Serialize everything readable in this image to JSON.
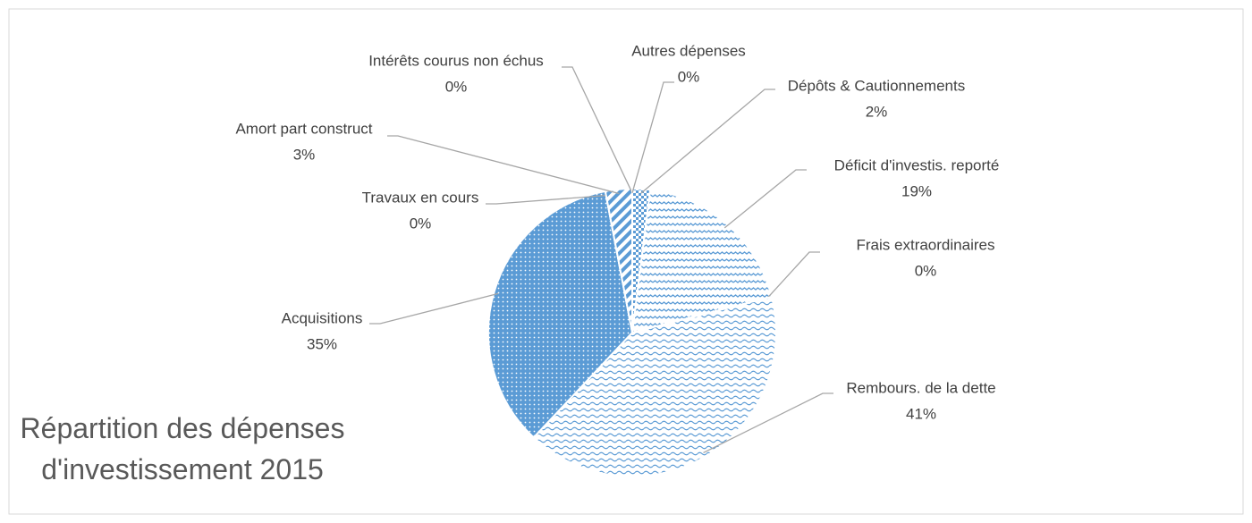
{
  "chart_data": {
    "type": "pie",
    "title": "Répartition des dépenses d'investissement 2015",
    "categories": [
      "Dépôts & Cautionnements",
      "Déficit d'investis. reporté",
      "Frais extraordinaires",
      "Rembours. de la dette",
      "Acquisitions",
      "Travaux en cours",
      "Amort part construct",
      "Intérêts courus non échus",
      "Autres dépenses"
    ],
    "values": [
      2,
      19,
      0,
      41,
      35,
      0,
      3,
      0,
      0
    ],
    "value_labels": [
      "2%",
      "19%",
      "0%",
      "41%",
      "35%",
      "0%",
      "3%",
      "0%",
      "0%"
    ],
    "color": "#5b9bd5"
  }
}
